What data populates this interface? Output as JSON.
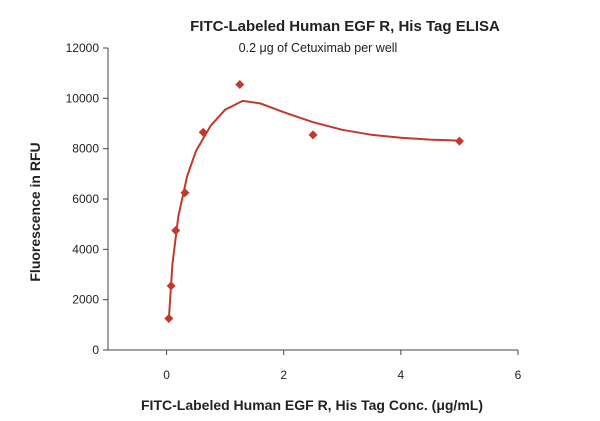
{
  "chart_data": {
    "type": "scatter",
    "title": "FITC-Labeled Human EGF R, His Tag ELISA",
    "subtitle": "0.2 μg of Cetuximab per well",
    "xlabel": "FITC-Labeled Human EGF R, His Tag Conc. (μg/mL)",
    "ylabel": "Fluorescence in RFU",
    "xlim": [
      -1,
      6
    ],
    "ylim": [
      0,
      12000
    ],
    "x_ticks": [
      0,
      2,
      4,
      6
    ],
    "y_ticks": [
      0,
      2000,
      4000,
      6000,
      8000,
      10000,
      12000
    ],
    "x_tick_labels": [
      "0",
      "2",
      "4",
      "6"
    ],
    "y_tick_labels": [
      "0",
      "2000",
      "4000",
      "6000",
      "8000",
      "10000",
      "12000"
    ],
    "grid": false,
    "marker_color": "#c0392b",
    "series": [
      {
        "points": [
          {
            "x": 0.039,
            "y": 1250
          },
          {
            "x": 0.078,
            "y": 2550
          },
          {
            "x": 0.156,
            "y": 4750
          },
          {
            "x": 0.313,
            "y": 6250
          },
          {
            "x": 0.625,
            "y": 8650
          },
          {
            "x": 1.25,
            "y": 10550
          },
          {
            "x": 2.5,
            "y": 8550
          },
          {
            "x": 5.0,
            "y": 8300
          }
        ],
        "fit_curve": [
          {
            "x": 0.039,
            "y": 1250
          },
          {
            "x": 0.1,
            "y": 3400
          },
          {
            "x": 0.2,
            "y": 5300
          },
          {
            "x": 0.35,
            "y": 6900
          },
          {
            "x": 0.5,
            "y": 7900
          },
          {
            "x": 0.75,
            "y": 8900
          },
          {
            "x": 1.0,
            "y": 9550
          },
          {
            "x": 1.3,
            "y": 9900
          },
          {
            "x": 1.6,
            "y": 9800
          },
          {
            "x": 2.0,
            "y": 9450
          },
          {
            "x": 2.5,
            "y": 9050
          },
          {
            "x": 3.0,
            "y": 8750
          },
          {
            "x": 3.5,
            "y": 8550
          },
          {
            "x": 4.0,
            "y": 8430
          },
          {
            "x": 4.5,
            "y": 8360
          },
          {
            "x": 5.0,
            "y": 8320
          }
        ]
      }
    ]
  }
}
